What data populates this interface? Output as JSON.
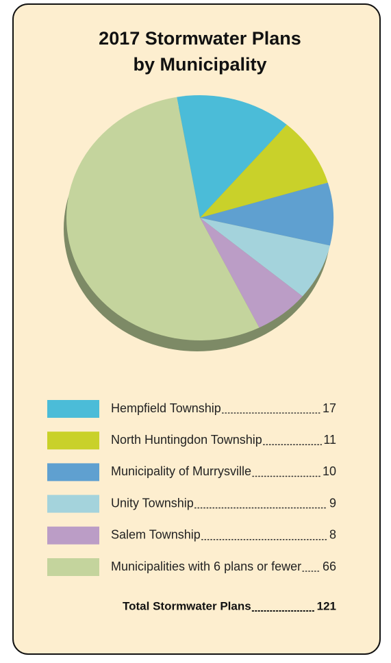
{
  "chart_data": {
    "type": "pie",
    "title": [
      "2017 Stormwater Plans",
      "by Municipality"
    ],
    "categories": [
      "Hempfield Township",
      "North Huntingdon Township",
      "Municipality of Murrysville",
      "Unity Township",
      "Salem Township",
      "Municipalities with 6 plans or fewer"
    ],
    "values": [
      17,
      11,
      10,
      9,
      8,
      66
    ],
    "colors": [
      "#4bbcd8",
      "#c9d12a",
      "#5fa0d0",
      "#a4d3dc",
      "#bb9dc6",
      "#c4d49d"
    ],
    "total_label": "Total Stormwater Plans",
    "total": 121
  }
}
